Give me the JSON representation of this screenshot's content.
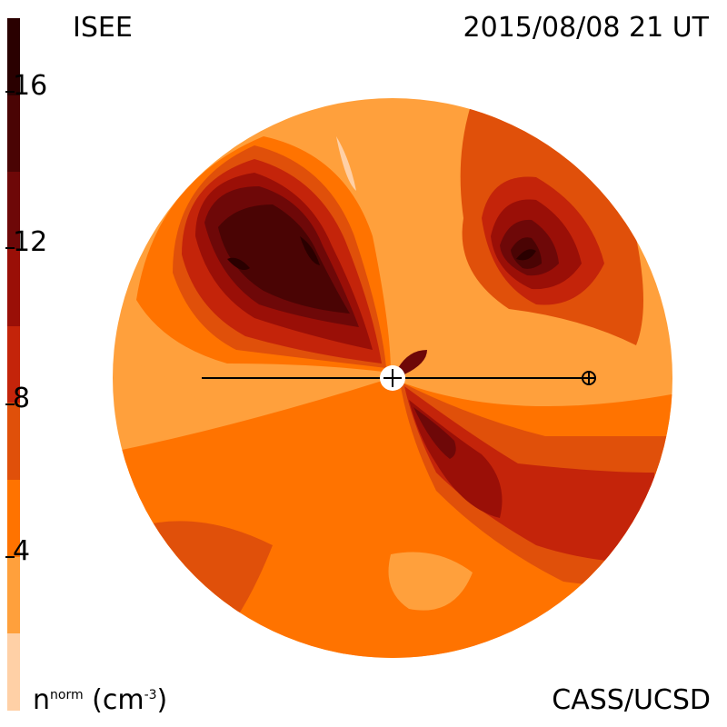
{
  "header": {
    "source_label": "ISEE",
    "timestamp": "2015/08/08 21 UT"
  },
  "footer": {
    "credit": "CASS/UCSD",
    "unit_main": "n",
    "unit_sup": "norm",
    "unit_tail": " (cm",
    "unit_exp": "-3",
    "unit_close": ")"
  },
  "colorbar": {
    "ticks": [
      "16",
      "12",
      "8",
      "4"
    ],
    "colors": [
      "#2a0000",
      "#4a0404",
      "#6e0808",
      "#9a0f07",
      "#c4240a",
      "#e0500a",
      "#ff7300",
      "#ffa03c",
      "#ffd0a6"
    ]
  },
  "plot": {
    "observer_marker": "earth-symbol",
    "center_marker": "sun-symbol"
  }
}
